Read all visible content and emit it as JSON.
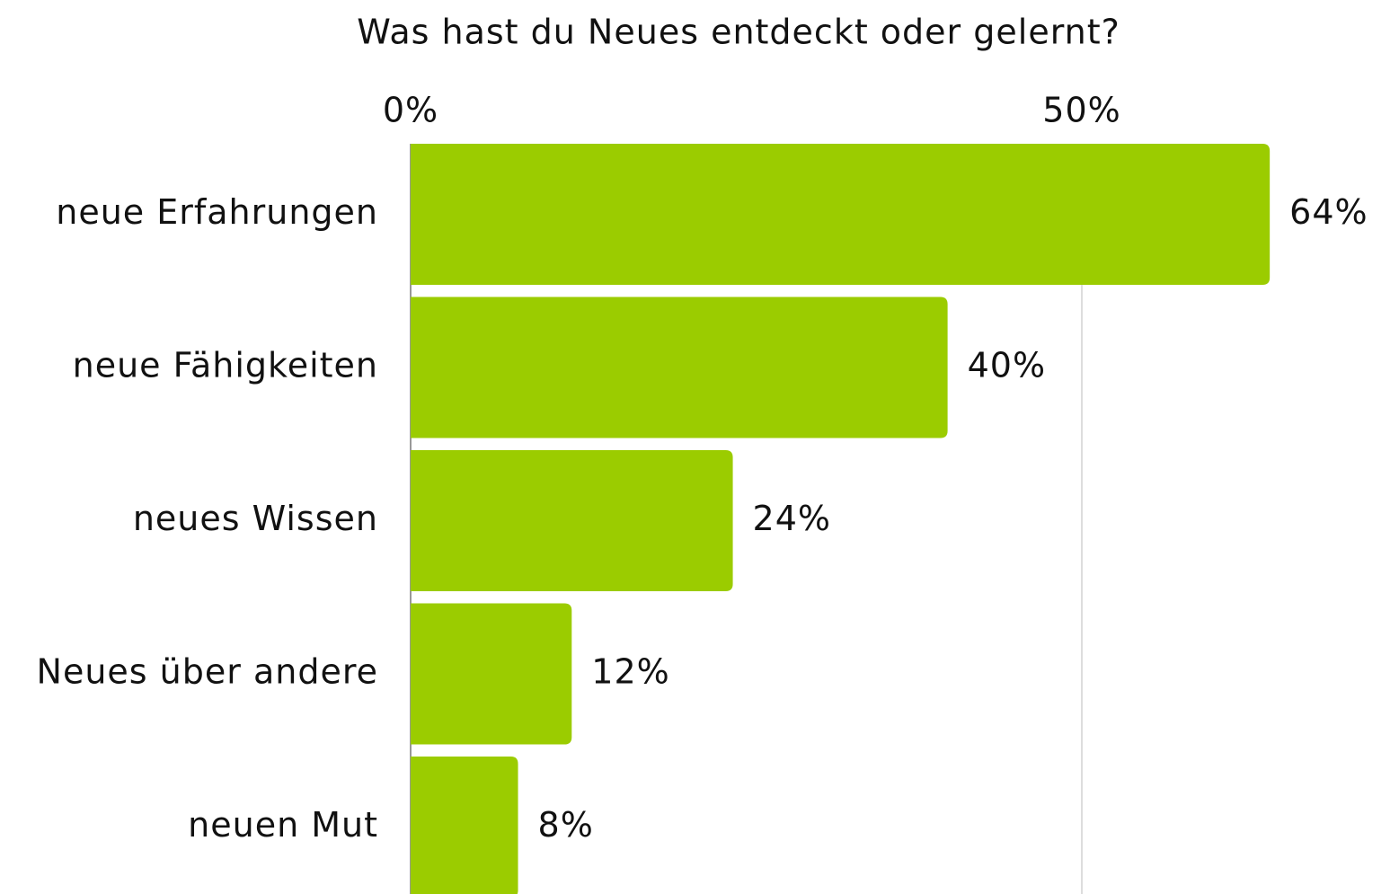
{
  "chart_data": {
    "type": "bar",
    "orientation": "horizontal",
    "title": "Was hast du Neues entdeckt oder gelernt?",
    "categories": [
      "neue Erfahrungen",
      "neue Fähigkeiten",
      "neues Wissen",
      "Neues über andere",
      "neuen Mut"
    ],
    "values": [
      64,
      40,
      24,
      12,
      8
    ],
    "value_labels": [
      "64%",
      "40%",
      "24%",
      "12%",
      "8%"
    ],
    "color": "#9bcc00",
    "xlim": [
      0,
      70
    ],
    "xticks": [
      {
        "value": 0,
        "label": "0%"
      },
      {
        "value": 50,
        "label": "50%"
      }
    ],
    "grid": true
  }
}
